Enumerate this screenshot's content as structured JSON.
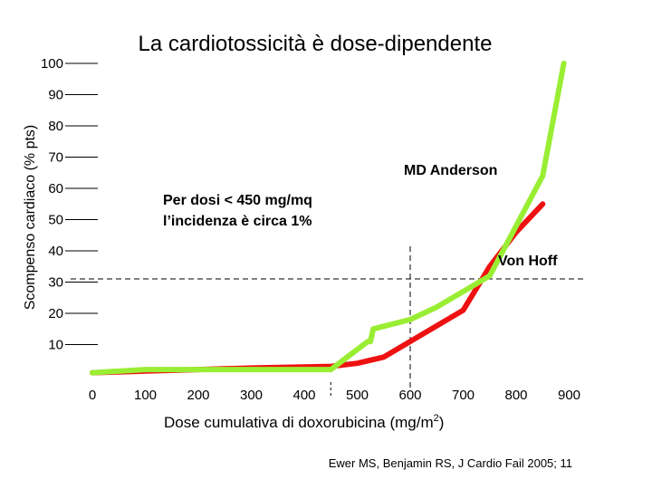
{
  "chart_data": {
    "type": "line",
    "title": "La cardiotossicità è dose-dipendente",
    "xlabel": "Dose cumulativa di doxorubicina (mg/m",
    "xlabel_sup": "2",
    "xlabel_end": ")",
    "ylabel": "Scompenso cardiaco (% pts)",
    "xlim": [
      0,
      900
    ],
    "ylim": [
      0,
      100
    ],
    "x_ticks": [
      {
        "value": 0,
        "label": "0"
      },
      {
        "value": 100,
        "label": "100"
      },
      {
        "value": 200,
        "label": "200"
      },
      {
        "value": 300,
        "label": "300"
      },
      {
        "value": 400,
        "label": "400"
      },
      {
        "value": 500,
        "label": "500"
      },
      {
        "value": 600,
        "label": "600"
      },
      {
        "value": 700,
        "label": "700"
      },
      {
        "value": 800,
        "label": "800"
      },
      {
        "value": 900,
        "label": "900"
      }
    ],
    "y_ticks": [
      {
        "value": 10,
        "label": "10"
      },
      {
        "value": 20,
        "label": "20"
      },
      {
        "value": 30,
        "label": "30"
      },
      {
        "value": 40,
        "label": "40"
      },
      {
        "value": 50,
        "label": "50"
      },
      {
        "value": 60,
        "label": "60"
      },
      {
        "value": 70,
        "label": "70"
      },
      {
        "value": 80,
        "label": "80"
      },
      {
        "value": 90,
        "label": "90"
      },
      {
        "value": 100,
        "label": "100"
      }
    ],
    "series": [
      {
        "name": "MD Anderson",
        "color": "#99ee33",
        "points": [
          [
            0,
            1
          ],
          [
            100,
            2
          ],
          [
            200,
            2
          ],
          [
            300,
            2
          ],
          [
            450,
            2
          ],
          [
            520,
            11
          ],
          [
            525,
            11
          ],
          [
            530,
            15
          ],
          [
            600,
            18
          ],
          [
            650,
            22
          ],
          [
            700,
            27
          ],
          [
            750,
            32
          ],
          [
            850,
            64
          ],
          [
            890,
            100
          ]
        ]
      },
      {
        "name": "Von Hoff",
        "color": "#ee1111",
        "points": [
          [
            0,
            1
          ],
          [
            100,
            1.5
          ],
          [
            200,
            2
          ],
          [
            300,
            2.5
          ],
          [
            450,
            3
          ],
          [
            500,
            4
          ],
          [
            550,
            6
          ],
          [
            600,
            11
          ],
          [
            650,
            16
          ],
          [
            700,
            21
          ],
          [
            750,
            35
          ],
          [
            800,
            46
          ],
          [
            850,
            55
          ]
        ]
      }
    ],
    "annotation": {
      "line1": "Per dosi < 450 mg/mq",
      "line2": "l’incidenza è circa 1%"
    },
    "reference_lines": {
      "x_value": 600,
      "y_value": 31
    },
    "citation": "Ewer MS, Benjamin RS, J Cardio Fail 2005; 11",
    "grid": false,
    "legend": "inline labels"
  }
}
